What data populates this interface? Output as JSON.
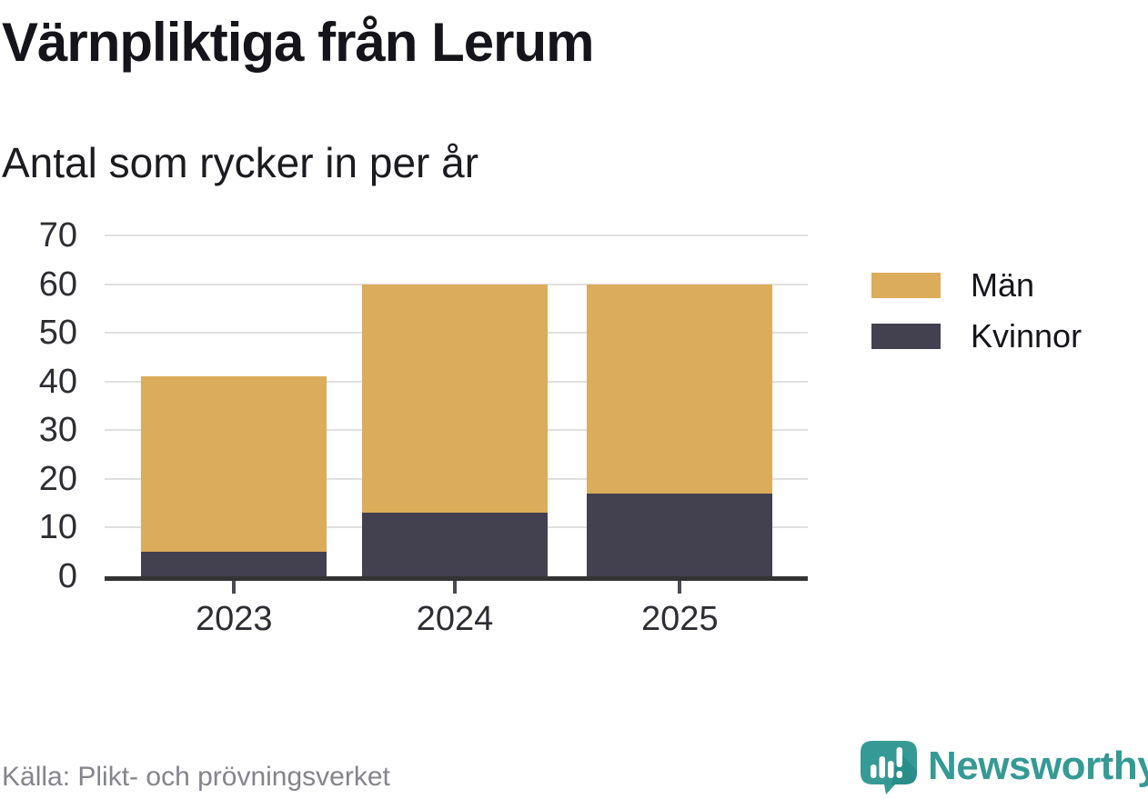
{
  "header": {
    "title": "Värnpliktiga från Lerum",
    "subtitle": "Antal som rycker in per år"
  },
  "chart_data": {
    "type": "bar",
    "stacked": true,
    "title": "Värnpliktiga från Lerum",
    "subtitle": "Antal som rycker in per år",
    "categories": [
      "2023",
      "2024",
      "2025"
    ],
    "series": [
      {
        "name": "Män",
        "color": "#DBAC5B",
        "values": [
          36,
          47,
          43
        ]
      },
      {
        "name": "Kvinnor",
        "color": "#434050",
        "values": [
          5,
          13,
          17
        ]
      }
    ],
    "stack_order_bottom_to_top": [
      "Kvinnor",
      "Män"
    ],
    "totals": [
      41,
      60,
      60
    ],
    "xlabel": "",
    "ylabel": "",
    "ylim": [
      0,
      70
    ],
    "yticks": [
      0,
      10,
      20,
      30,
      40,
      50,
      60,
      70
    ],
    "grid": true,
    "legend_position": "right"
  },
  "footer": {
    "source": "Källa: Plikt- och prövningsverket",
    "brand": "Newsworthy"
  },
  "colors": {
    "men": "#DBAC5B",
    "women": "#434050",
    "grid": "#e0e0e0",
    "axis": "#333333",
    "tick": "#4b4951",
    "axis_label": "#2d2d33",
    "teal": "#359a95",
    "teal_dark": "#1f837f"
  }
}
